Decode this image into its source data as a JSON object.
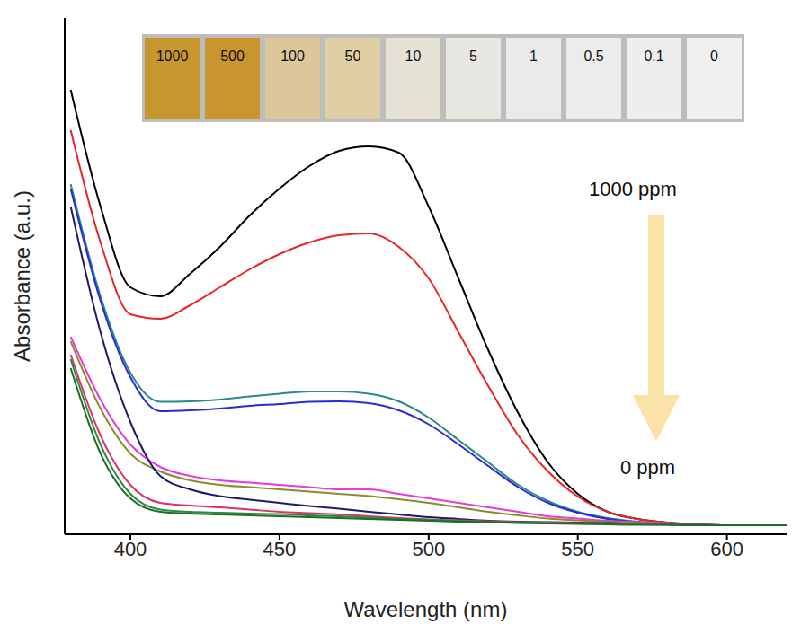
{
  "chart_data": {
    "type": "line",
    "x_label": "Wavelength (nm)",
    "y_label": "Absorbance (a.u.)",
    "annotations": [
      "1000 ppm",
      "0 ppm"
    ],
    "x": [
      380,
      390,
      400,
      410,
      420,
      430,
      440,
      450,
      460,
      470,
      480,
      490,
      500,
      510,
      520,
      530,
      540,
      550,
      560,
      570,
      580,
      590,
      600,
      610,
      620
    ],
    "xlim": [
      378,
      620
    ],
    "xticks": [
      400,
      450,
      500,
      550,
      600
    ],
    "ylim": [
      0,
      1.15
    ],
    "tick_labels": "x",
    "grid": false,
    "series": [
      {
        "name": "1000",
        "color": "#000000",
        "values": [
          0.99,
          0.73,
          0.55,
          0.53,
          0.58,
          0.64,
          0.71,
          0.77,
          0.82,
          0.854,
          0.864,
          0.85,
          0.73,
          0.57,
          0.41,
          0.27,
          0.16,
          0.09,
          0.05,
          0.034,
          0.026,
          0.022,
          0.02,
          0.02,
          0.02
        ]
      },
      {
        "name": "500",
        "color": "#e8262a",
        "values": [
          0.9,
          0.65,
          0.49,
          0.48,
          0.51,
          0.55,
          0.59,
          0.624,
          0.65,
          0.666,
          0.67,
          0.64,
          0.57,
          0.45,
          0.33,
          0.22,
          0.14,
          0.084,
          0.05,
          0.034,
          0.026,
          0.022,
          0.02,
          0.02,
          0.02
        ]
      },
      {
        "name": "100",
        "color": "#2a8a8a",
        "values": [
          0.78,
          0.53,
          0.36,
          0.295,
          0.296,
          0.3,
          0.307,
          0.313,
          0.318,
          0.318,
          0.313,
          0.296,
          0.26,
          0.21,
          0.16,
          0.11,
          0.074,
          0.05,
          0.036,
          0.028,
          0.024,
          0.02,
          0.02,
          0.02,
          0.02
        ]
      },
      {
        "name": "50",
        "color": "#2b2bd6",
        "values": [
          0.77,
          0.52,
          0.35,
          0.274,
          0.276,
          0.28,
          0.286,
          0.29,
          0.295,
          0.296,
          0.292,
          0.276,
          0.245,
          0.2,
          0.152,
          0.105,
          0.07,
          0.048,
          0.034,
          0.027,
          0.023,
          0.02,
          0.02,
          0.02,
          0.02
        ]
      },
      {
        "name": "10",
        "color": "#e83ad6",
        "values": [
          0.44,
          0.3,
          0.2,
          0.15,
          0.13,
          0.12,
          0.115,
          0.11,
          0.105,
          0.1,
          0.1,
          0.09,
          0.08,
          0.07,
          0.06,
          0.05,
          0.04,
          0.035,
          0.03,
          0.027,
          0.025,
          0.022,
          0.02,
          0.02,
          0.02
        ]
      },
      {
        "name": "5",
        "color": "#8b8b2b",
        "values": [
          0.43,
          0.28,
          0.18,
          0.14,
          0.12,
          0.11,
          0.105,
          0.1,
          0.095,
          0.09,
          0.085,
          0.078,
          0.07,
          0.06,
          0.05,
          0.042,
          0.035,
          0.031,
          0.028,
          0.025,
          0.023,
          0.021,
          0.02,
          0.02,
          0.02
        ]
      },
      {
        "name": "1",
        "color": "#1a1a6e",
        "values": [
          0.73,
          0.45,
          0.25,
          0.13,
          0.1,
          0.085,
          0.077,
          0.07,
          0.063,
          0.057,
          0.05,
          0.044,
          0.038,
          0.034,
          0.03,
          0.028,
          0.027,
          0.026,
          0.025,
          0.023,
          0.022,
          0.021,
          0.02,
          0.02,
          0.02
        ]
      },
      {
        "name": "0.5",
        "color": "#e0306a",
        "values": [
          0.4,
          0.22,
          0.11,
          0.07,
          0.064,
          0.06,
          0.055,
          0.05,
          0.047,
          0.044,
          0.04,
          0.036,
          0.033,
          0.031,
          0.029,
          0.027,
          0.026,
          0.025,
          0.024,
          0.023,
          0.022,
          0.021,
          0.02,
          0.02,
          0.02
        ]
      },
      {
        "name": "0.1",
        "color": "#2b8b3b",
        "values": [
          0.39,
          0.2,
          0.09,
          0.055,
          0.05,
          0.048,
          0.046,
          0.045,
          0.042,
          0.04,
          0.037,
          0.034,
          0.032,
          0.03,
          0.028,
          0.026,
          0.025,
          0.024,
          0.023,
          0.022,
          0.021,
          0.02,
          0.02,
          0.02,
          0.02
        ]
      },
      {
        "name": "0",
        "color": "#1e6b2a",
        "values": [
          0.37,
          0.18,
          0.08,
          0.05,
          0.046,
          0.044,
          0.042,
          0.04,
          0.038,
          0.036,
          0.034,
          0.032,
          0.03,
          0.028,
          0.027,
          0.025,
          0.024,
          0.023,
          0.022,
          0.021,
          0.021,
          0.02,
          0.02,
          0.02,
          0.02
        ]
      }
    ]
  }
}
